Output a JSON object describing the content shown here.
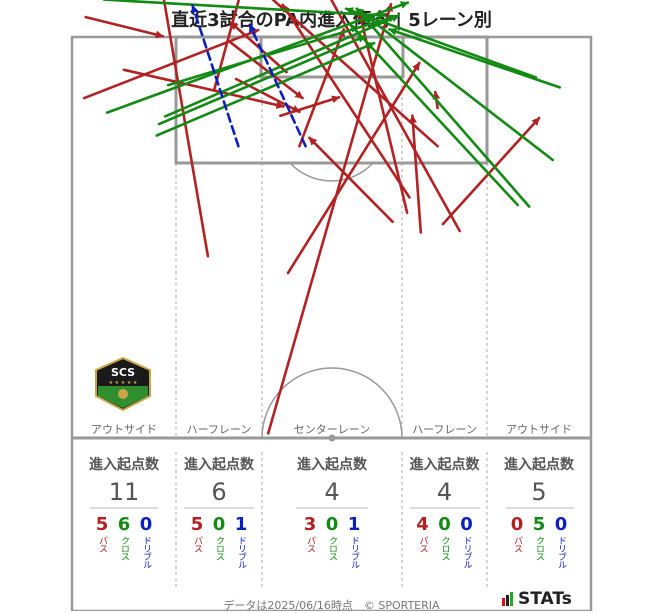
{
  "title": "直近3試合のPA内進入傾向 | 5レーン別",
  "colors": {
    "pass": "#b22222",
    "cross": "#138a13",
    "dribble": "#0b1fbf"
  },
  "lanes": [
    {
      "label": "アウトサイド",
      "header": "進入起点数",
      "total": "11",
      "pass": "5",
      "cross": "6",
      "dribble": "0"
    },
    {
      "label": "ハーフレーン",
      "header": "進入起点数",
      "total": "6",
      "pass": "5",
      "cross": "0",
      "dribble": "1"
    },
    {
      "label": "センターレーン",
      "header": "進入起点数",
      "total": "4",
      "pass": "3",
      "cross": "0",
      "dribble": "1"
    },
    {
      "label": "ハーフレーン",
      "header": "進入起点数",
      "total": "4",
      "pass": "4",
      "cross": "0",
      "dribble": "0"
    },
    {
      "label": "アウトサイド",
      "header": "進入起点数",
      "total": "5",
      "pass": "0",
      "cross": "5",
      "dribble": "0"
    }
  ],
  "legend_labels": {
    "pass": "パス",
    "cross": "クロス",
    "dribble": "ドリブル"
  },
  "footer": "データは2025/06/16時点　© SPORTERIA",
  "brand": "STATs",
  "logo_text": "SCS",
  "chart_data": {
    "type": "pitch-arrows",
    "title": "直近3試合のPA内進入傾向 | 5レーン別",
    "units": "meters (x across pitch width 0-68, y distance from own goal line 0-52.5)",
    "lane_totals": [
      11,
      6,
      4,
      4,
      5
    ],
    "arrows": [
      {
        "type": "pass",
        "from": [
          17.8,
          23.8
        ],
        "to": [
          11.8,
          58.8
        ]
      },
      {
        "type": "pass",
        "from": [
          1.6,
          44.5
        ],
        "to": [
          24.4,
          53.4
        ]
      },
      {
        "type": "pass",
        "from": [
          1.8,
          55.1
        ],
        "to": [
          11.9,
          52.6
        ]
      },
      {
        "type": "pass",
        "from": [
          6.8,
          48.2
        ],
        "to": [
          27.7,
          43.4
        ]
      },
      {
        "type": "pass",
        "from": [
          20.5,
          52.0
        ],
        "to": [
          30.2,
          44.5
        ]
      },
      {
        "type": "pass",
        "from": [
          18.6,
          45.5
        ],
        "to": [
          22.6,
          60.1
        ]
      },
      {
        "type": "pass",
        "from": [
          21.5,
          47.0
        ],
        "to": [
          29.8,
          42.7
        ]
      },
      {
        "type": "pass",
        "from": [
          27.3,
          42.2
        ],
        "to": [
          35.0,
          44.6
        ]
      },
      {
        "type": "pass",
        "from": [
          28.3,
          21.6
        ],
        "to": [
          45.5,
          49.1
        ]
      },
      {
        "type": "pass",
        "from": [
          28.1,
          47.9
        ],
        "to": [
          20.8,
          54.4
        ]
      },
      {
        "type": "pass",
        "from": [
          20.8,
          57.5
        ],
        "to": [
          18.9,
          60.3
        ]
      },
      {
        "type": "pass",
        "from": [
          25.7,
          0.6
        ],
        "to": [
          41.8,
          56.8
        ]
      },
      {
        "type": "pass",
        "from": [
          29.8,
          38.2
        ],
        "to": [
          35.6,
          53.5
        ]
      },
      {
        "type": "pass",
        "from": [
          42.0,
          28.3
        ],
        "to": [
          31.1,
          39.3
        ]
      },
      {
        "type": "pass",
        "from": [
          45.7,
          26.9
        ],
        "to": [
          44.6,
          42.2
        ]
      },
      {
        "type": "pass",
        "from": [
          44.2,
          31.5
        ],
        "to": [
          27.6,
          56.7
        ]
      },
      {
        "type": "pass",
        "from": [
          50.8,
          27.1
        ],
        "to": [
          32.3,
          60.4
        ]
      },
      {
        "type": "pass",
        "from": [
          43.9,
          29.5
        ],
        "to": [
          37.6,
          56.0
        ]
      },
      {
        "type": "pass",
        "from": [
          47.9,
          43.2
        ],
        "to": [
          47.6,
          45.3
        ]
      },
      {
        "type": "pass",
        "from": [
          48.6,
          28.0
        ],
        "to": [
          61.2,
          41.9
        ]
      },
      {
        "type": "pass",
        "from": [
          47.9,
          38.2
        ],
        "to": [
          25.3,
          58.3
        ]
      },
      {
        "type": "cross",
        "from": [
          4.2,
          57.4
        ],
        "to": [
          41.0,
          55.3
        ]
      },
      {
        "type": "cross",
        "from": [
          4.6,
          42.6
        ],
        "to": [
          44.0,
          57.0
        ]
      },
      {
        "type": "cross",
        "from": [
          12.6,
          46.2
        ],
        "to": [
          42.4,
          55.2
        ]
      },
      {
        "type": "cross",
        "from": [
          11.4,
          41.1
        ],
        "to": [
          38.4,
          52.6
        ]
      },
      {
        "type": "cross",
        "from": [
          12.2,
          42.1
        ],
        "to": [
          42.8,
          55.3
        ]
      },
      {
        "type": "cross",
        "from": [
          11.1,
          39.6
        ],
        "to": [
          39.6,
          51.7
        ]
      },
      {
        "type": "cross",
        "from": [
          60.8,
          47.2
        ],
        "to": [
          35.9,
          56.2
        ]
      },
      {
        "type": "cross",
        "from": [
          63.9,
          45.9
        ],
        "to": [
          41.6,
          53.5
        ]
      },
      {
        "type": "cross",
        "from": [
          58.4,
          30.5
        ],
        "to": [
          36.5,
          54.1
        ]
      },
      {
        "type": "cross",
        "from": [
          59.9,
          30.3
        ],
        "to": [
          38.1,
          55.3
        ]
      },
      {
        "type": "cross",
        "from": [
          63.0,
          36.4
        ],
        "to": [
          37.3,
          56.2
        ]
      },
      {
        "type": "dribble",
        "from": [
          21.8,
          38.2
        ],
        "to": [
          15.8,
          56.6
        ]
      },
      {
        "type": "dribble",
        "from": [
          30.6,
          38.2
        ],
        "to": [
          23.3,
          54.1
        ]
      }
    ]
  }
}
